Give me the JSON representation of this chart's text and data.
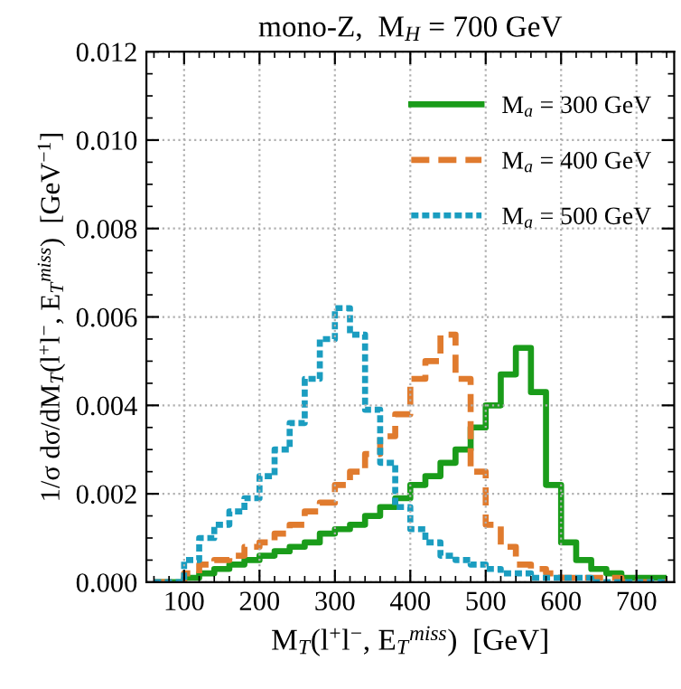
{
  "chart_data": {
    "type": "histogram",
    "title": "mono-Z,  M$_{H}$ = 700 GeV",
    "xlabel": "M$_{T}$(l$^{+}$l$^{−}$, E$_{T}$$^{miss}$)  [GeV]",
    "ylabel": "1/σ dσ/dM$_{T}$(l$^{+}$l$^{−}$, E$_{T}$$^{miss}$)  [GeV$^{−1}$]",
    "bins": [
      60,
      80,
      100,
      120,
      140,
      160,
      180,
      200,
      220,
      240,
      260,
      280,
      300,
      320,
      340,
      360,
      380,
      400,
      420,
      440,
      460,
      480,
      500,
      520,
      540,
      560,
      580,
      600,
      620,
      640,
      660,
      680,
      700,
      720,
      740
    ],
    "series": [
      {
        "name": "M$_{a}$ = 300 GeV",
        "color": "#1a9c1a",
        "line_style": "solid",
        "values": [
          0,
          0,
          0.0001,
          0.0002,
          0.0003,
          0.0004,
          0.0005,
          0.0006,
          0.0007,
          0.0008,
          0.0009,
          0.0011,
          0.0012,
          0.0013,
          0.0015,
          0.0017,
          0.0019,
          0.0022,
          0.0024,
          0.0027,
          0.003,
          0.0035,
          0.004,
          0.0047,
          0.0053,
          0.0043,
          0.0022,
          0.0009,
          0.0005,
          0.0003,
          0.0002,
          0.0001,
          0.0001,
          0.0001
        ]
      },
      {
        "name": "M$_{a}$ = 400 GeV",
        "color": "#e07b2e",
        "line_style": "dashed",
        "values": [
          0,
          0,
          0.0002,
          0.0004,
          0.0005,
          0.0006,
          0.0008,
          0.0009,
          0.0011,
          0.0013,
          0.0016,
          0.0018,
          0.0022,
          0.0025,
          0.0029,
          0.0033,
          0.0038,
          0.0046,
          0.005,
          0.0056,
          0.0046,
          0.0025,
          0.0013,
          0.0008,
          0.0004,
          0.0003,
          0.0002,
          0.0001,
          0.0001,
          0.0001,
          0.0001,
          0,
          0,
          0
        ]
      },
      {
        "name": "M$_{a}$ = 500 GeV",
        "color": "#1b9dc0",
        "line_style": "dotted",
        "values": [
          0,
          0,
          0.0005,
          0.001,
          0.0013,
          0.0016,
          0.0019,
          0.0024,
          0.003,
          0.0036,
          0.0046,
          0.0055,
          0.0062,
          0.0056,
          0.0039,
          0.0027,
          0.0017,
          0.0012,
          0.0009,
          0.0006,
          0.0005,
          0.0004,
          0.0003,
          0.0002,
          0.0002,
          0.0001,
          0.0001,
          0.0001,
          0.0001,
          0,
          0,
          0,
          0,
          0
        ]
      }
    ],
    "xlim": [
      50,
      750
    ],
    "xticks": [
      100,
      200,
      300,
      400,
      500,
      600,
      700
    ],
    "ylim": [
      0,
      0.012
    ],
    "yticks": [
      {
        "value": 0,
        "label": "0.000"
      },
      {
        "value": 0.002,
        "label": "0.002"
      },
      {
        "value": 0.004,
        "label": "0.004"
      },
      {
        "value": 0.006,
        "label": "0.006"
      },
      {
        "value": 0.008,
        "label": "0.008"
      },
      {
        "value": 0.01,
        "label": "0.010"
      },
      {
        "value": 0.012,
        "label": "0.012"
      }
    ],
    "grid": true,
    "legend": "top right"
  }
}
